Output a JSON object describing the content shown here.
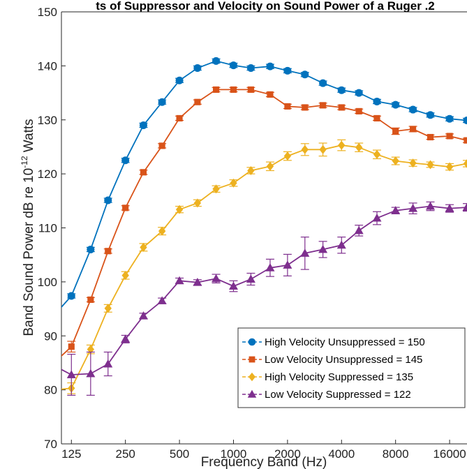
{
  "chart_data": {
    "type": "line",
    "title": "ts of Suppressor and Velocity on Sound Power of a Ruger .2",
    "xlabel": "Frequency Band (Hz)",
    "ylabel": "Band Sound Power dB re 10",
    "ylabel_exponent": "-12",
    "ylabel_suffix": "Watts",
    "xscale": "log",
    "xlim": [
      110,
      20000
    ],
    "ylim": [
      70,
      150
    ],
    "xticks": [
      125,
      250,
      500,
      1000,
      2000,
      4000,
      8000,
      16000
    ],
    "xtick_labels": [
      "125",
      "250",
      "500",
      "1000",
      "2000",
      "4000",
      "8000",
      "16000"
    ],
    "yticks": [
      70,
      80,
      90,
      100,
      110,
      120,
      130,
      140,
      150
    ],
    "ytick_labels": [
      "70",
      "80",
      "90",
      "100",
      "110",
      "120",
      "130",
      "140",
      "150"
    ],
    "grid": false,
    "legend_position": "bottom-right",
    "x": [
      100,
      125,
      160,
      200,
      250,
      315,
      400,
      500,
      630,
      800,
      1000,
      1250,
      1600,
      2000,
      2500,
      3150,
      4000,
      5000,
      6300,
      8000,
      10000,
      12500,
      16000,
      20000
    ],
    "series": [
      {
        "name": "High Velocity Unsuppressed = 150",
        "color": "#0072BD",
        "marker": "circle",
        "values": [
          93.8,
          97.4,
          106.0,
          115.1,
          122.5,
          129.0,
          133.3,
          137.3,
          139.6,
          140.9,
          140.1,
          139.6,
          139.9,
          139.1,
          138.4,
          136.8,
          135.5,
          135.0,
          133.4,
          132.8,
          131.9,
          130.9,
          130.2,
          129.9
        ],
        "errors": [
          0.3,
          0.4,
          0.4,
          0.4,
          0.4,
          0.4,
          0.4,
          0.4,
          0.4,
          0.4,
          0.4,
          0.4,
          0.4,
          0.4,
          0.4,
          0.4,
          0.4,
          0.4,
          0.4,
          0.4,
          0.4,
          0.4,
          0.4,
          0.4
        ]
      },
      {
        "name": "Low Velocity Unsuppressed = 145",
        "color": "#D95319",
        "marker": "square",
        "values": [
          85.0,
          88.0,
          96.7,
          105.7,
          113.7,
          120.3,
          125.2,
          130.3,
          133.3,
          135.6,
          135.6,
          135.6,
          134.7,
          132.5,
          132.3,
          132.7,
          132.3,
          131.6,
          130.3,
          127.9,
          128.3,
          126.8,
          127.0,
          126.2
        ],
        "errors": [
          0.5,
          1.0,
          0.4,
          0.4,
          0.4,
          0.4,
          0.4,
          0.4,
          0.4,
          0.4,
          0.4,
          0.4,
          0.4,
          0.4,
          0.4,
          0.4,
          0.4,
          0.4,
          0.4,
          0.6,
          0.5,
          0.4,
          0.4,
          0.4
        ]
      },
      {
        "name": "High Velocity Suppressed = 135",
        "color": "#EDB120",
        "marker": "diamond",
        "values": [
          80.0,
          80.3,
          87.5,
          95.1,
          101.2,
          106.4,
          109.4,
          113.4,
          114.6,
          117.2,
          118.3,
          120.6,
          121.4,
          123.3,
          124.5,
          124.5,
          125.3,
          124.9,
          123.6,
          122.4,
          122.0,
          121.7,
          121.3,
          121.9
        ],
        "errors": [
          0.8,
          1.0,
          0.8,
          0.7,
          0.7,
          0.7,
          0.7,
          0.6,
          0.6,
          0.6,
          0.6,
          0.6,
          0.8,
          0.8,
          1.1,
          1.2,
          1.0,
          0.8,
          0.8,
          0.7,
          0.6,
          0.5,
          0.6,
          0.6
        ]
      },
      {
        "name": "Low Velocity Suppressed = 122",
        "color": "#7E2F8E",
        "marker": "triangle",
        "values": [
          84.5,
          82.8,
          83.0,
          84.8,
          89.4,
          93.7,
          96.5,
          100.2,
          99.9,
          100.6,
          99.2,
          100.5,
          102.6,
          103.1,
          105.3,
          106.0,
          106.8,
          109.5,
          111.8,
          113.2,
          113.6,
          114.0,
          113.6,
          113.8
        ],
        "errors": [
          0.8,
          3.8,
          4.0,
          2.2,
          0.7,
          0.5,
          0.5,
          0.5,
          0.5,
          0.8,
          1.0,
          1.1,
          1.6,
          2.0,
          3.0,
          1.5,
          1.5,
          1.0,
          1.2,
          0.6,
          1.0,
          0.8,
          0.7,
          0.7
        ]
      }
    ]
  }
}
